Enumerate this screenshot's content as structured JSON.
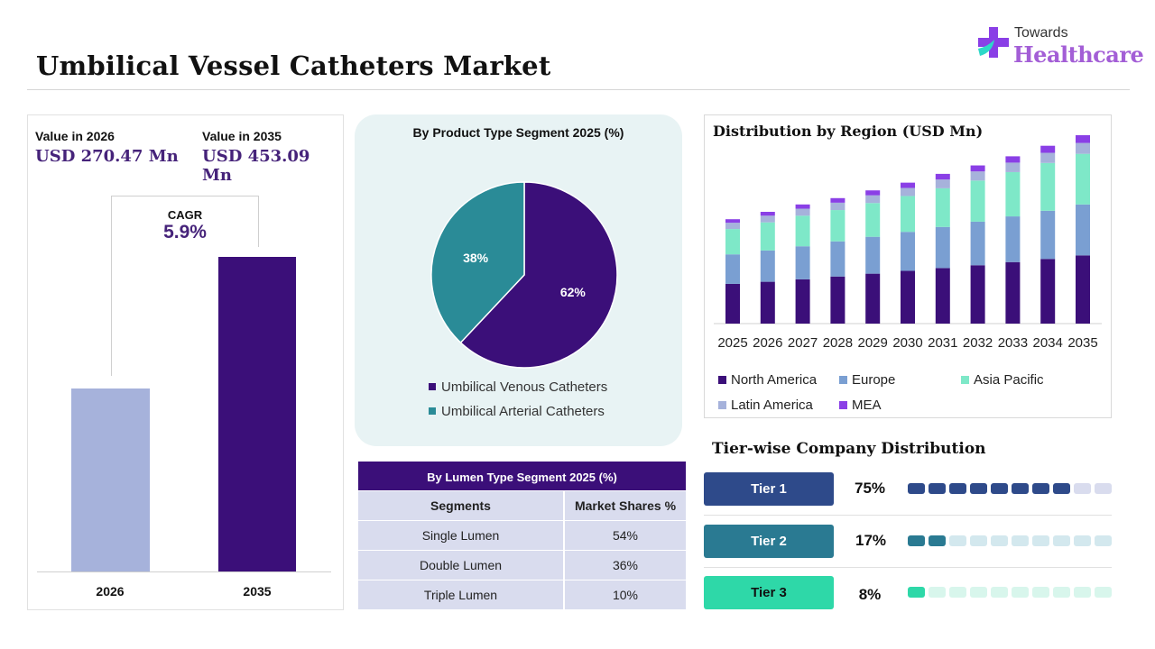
{
  "header": {
    "title": "Umbilical Vessel Catheters Market",
    "logo_top": "Towards",
    "logo_main": "Healthcare"
  },
  "values_panel": {
    "label_2026": "Value in 2026",
    "value_2026": "USD 270.47 Mn",
    "label_2035": "Value in 2035",
    "value_2035": "USD 453.09 Mn",
    "cagr_label": "CAGR",
    "cagr_value": "5.9%",
    "bar_years": [
      "2026",
      "2035"
    ],
    "bar_values": [
      270.47,
      453.09
    ],
    "colors": [
      "#a6b2db",
      "#3b0f79"
    ]
  },
  "pie_panel": {
    "title": "By Product Type Segment 2025 (%)",
    "slices": [
      {
        "label": "Umbilical Venous Catheters",
        "value": 62,
        "display": "62%",
        "color": "#3b0f79"
      },
      {
        "label": "Umbilical Arterial Catheters",
        "value": 38,
        "display": "38%",
        "color": "#2a8b97"
      }
    ]
  },
  "lumen_table": {
    "title": "By Lumen Type Segment 2025 (%)",
    "headers": [
      "Segments",
      "Market Shares %"
    ],
    "rows": [
      [
        "Single Lumen",
        "54%"
      ],
      [
        "Double Lumen",
        "36%"
      ],
      [
        "Triple Lumen",
        "10%"
      ]
    ]
  },
  "region_chart": {
    "title": "Distribution by Region (USD Mn)",
    "legend": [
      {
        "name": "North America",
        "color": "#3b0f79"
      },
      {
        "name": "Europe",
        "color": "#7a9fd2"
      },
      {
        "name": "Asia Pacific",
        "color": "#7ee8c8"
      },
      {
        "name": "Latin America",
        "color": "#a6b2db"
      },
      {
        "name": "MEA",
        "color": "#8a3fe6"
      }
    ]
  },
  "chart_data": [
    {
      "type": "bar",
      "title": "",
      "categories": [
        "2026",
        "2035"
      ],
      "values": [
        270.47,
        453.09
      ],
      "xlabel": "",
      "ylabel": ""
    },
    {
      "type": "pie",
      "title": "By Product Type Segment 2025 (%)",
      "labels": [
        "Umbilical Venous Catheters",
        "Umbilical Arterial Catheters"
      ],
      "values": [
        62,
        38
      ]
    },
    {
      "type": "bar",
      "stacked": true,
      "title": "Distribution by Region (USD Mn)",
      "categories": [
        "2025",
        "2026",
        "2027",
        "2028",
        "2029",
        "2030",
        "2031",
        "2032",
        "2033",
        "2034",
        "2035"
      ],
      "series": [
        {
          "name": "North America",
          "values": [
            113,
            119,
            126,
            134,
            142,
            150,
            158,
            166,
            175,
            184,
            194
          ]
        },
        {
          "name": "Europe",
          "values": [
            84,
            89,
            94,
            100,
            105,
            111,
            117,
            124,
            130,
            137,
            145
          ]
        },
        {
          "name": "Asia Pacific",
          "values": [
            72,
            80,
            87,
            89,
            96,
            102,
            110,
            117,
            126,
            136,
            144
          ]
        },
        {
          "name": "Latin America",
          "values": [
            18,
            19,
            20,
            21,
            22,
            23,
            25,
            26,
            27,
            29,
            31
          ]
        },
        {
          "name": "MEA",
          "values": [
            10,
            11,
            12,
            13,
            14,
            15,
            16,
            17,
            18,
            20,
            22
          ]
        }
      ],
      "legend_position": "bottom"
    },
    {
      "type": "bar",
      "title": "Tier-wise Company Distribution",
      "categories": [
        "Tier 1",
        "Tier 2",
        "Tier 3"
      ],
      "values": [
        75,
        17,
        8
      ]
    }
  ],
  "tiers": {
    "title": "Tier-wise Company Distribution",
    "items": [
      {
        "label": "Tier 1",
        "pct": "75%",
        "value": 75,
        "filled": 8,
        "color": "#2e4a8a",
        "light": "#d9dcee",
        "text_color": "#ffffff"
      },
      {
        "label": "Tier 2",
        "pct": "17%",
        "value": 17,
        "filled": 2,
        "color": "#2a7a92",
        "light": "#d3e8ee",
        "text_color": "#ffffff"
      },
      {
        "label": "Tier 3",
        "pct": "8%",
        "value": 8,
        "filled": 1,
        "color": "#2ed8a8",
        "light": "#d8f6ec",
        "text_color": "#111111"
      }
    ]
  }
}
